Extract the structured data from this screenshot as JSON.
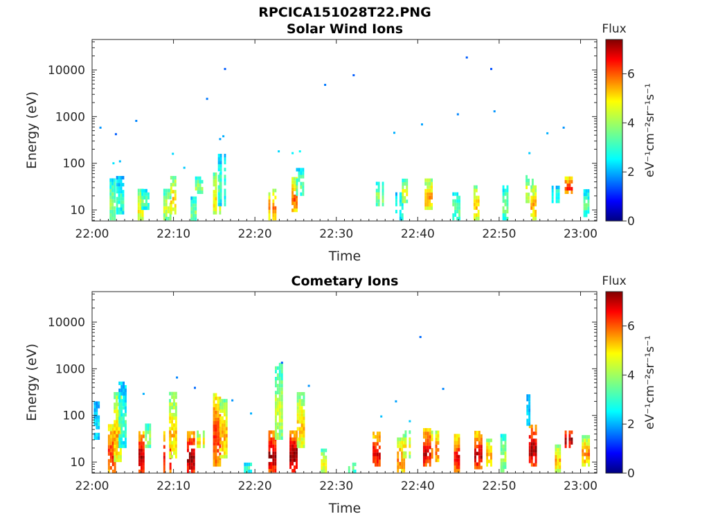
{
  "figure": {
    "title": "RPCICA151028T22.PNG"
  },
  "chart_data": [
    {
      "type": "heatmap",
      "title": "Solar Wind Ions",
      "xlabel": "Time",
      "ylabel": "Energy (eV)",
      "x_range_minutes": [
        0,
        62
      ],
      "x_ticks": [
        {
          "minute": 0,
          "label": "22:00"
        },
        {
          "minute": 10,
          "label": "22:10"
        },
        {
          "minute": 20,
          "label": "22:20"
        },
        {
          "minute": 30,
          "label": "22:30"
        },
        {
          "minute": 40,
          "label": "22:40"
        },
        {
          "minute": 50,
          "label": "22:50"
        },
        {
          "minute": 60,
          "label": "23:00"
        }
      ],
      "y_scale": "log",
      "y_range": [
        5.8,
        45000
      ],
      "y_ticks": [
        {
          "value": 10,
          "label": "10"
        },
        {
          "value": 100,
          "label": "100"
        },
        {
          "value": 1000,
          "label": "1000"
        },
        {
          "value": 10000,
          "label": "10000"
        }
      ],
      "colorbar": {
        "label": "Flux",
        "unit": "eV⁻¹cm⁻²sr⁻¹s⁻¹",
        "range": [
          0,
          7.4
        ],
        "ticks": [
          {
            "value": 0,
            "label": "0"
          },
          {
            "value": 2,
            "label": "2"
          },
          {
            "value": 4,
            "label": "4"
          },
          {
            "value": 6,
            "label": "6"
          }
        ]
      },
      "columns": [
        {
          "t": 2.5,
          "e0": 6,
          "e1": 42,
          "f": 3.6
        },
        {
          "t": 3.3,
          "e0": 8,
          "e1": 45,
          "f": 3.0
        },
        {
          "t": 5.7,
          "e0": 6,
          "e1": 28,
          "f": 4.4
        },
        {
          "t": 6.4,
          "e0": 10,
          "e1": 27,
          "f": 3.2
        },
        {
          "t": 9.1,
          "e0": 6,
          "e1": 25,
          "f": 4.0
        },
        {
          "t": 9.7,
          "e0": 8,
          "e1": 52,
          "f": 4.6
        },
        {
          "t": 12.2,
          "e0": 5.8,
          "e1": 17,
          "f": 3.4
        },
        {
          "t": 13.0,
          "e0": 22,
          "e1": 45,
          "f": 3.8
        },
        {
          "t": 15.2,
          "e0": 8,
          "e1": 55,
          "f": 4.6
        },
        {
          "t": 15.8,
          "e0": 12,
          "e1": 140,
          "f": 3.0
        },
        {
          "t": 22.0,
          "e0": 6,
          "e1": 28,
          "f": 5.0
        },
        {
          "t": 24.6,
          "e0": 9,
          "e1": 48,
          "f": 5.4
        },
        {
          "t": 25.4,
          "e0": 20,
          "e1": 75,
          "f": 3.3
        },
        {
          "t": 35.2,
          "e0": 12,
          "e1": 36,
          "f": 3.6
        },
        {
          "t": 37.6,
          "e0": 6,
          "e1": 22,
          "f": 3.0
        },
        {
          "t": 38.4,
          "e0": 14,
          "e1": 45,
          "f": 4.0
        },
        {
          "t": 41.2,
          "e0": 10,
          "e1": 42,
          "f": 4.9
        },
        {
          "t": 44.6,
          "e0": 6,
          "e1": 22,
          "f": 3.3
        },
        {
          "t": 47.2,
          "e0": 6,
          "e1": 33,
          "f": 4.6
        },
        {
          "t": 50.5,
          "e0": 6,
          "e1": 33,
          "f": 3.4
        },
        {
          "t": 53.6,
          "e0": 14,
          "e1": 55,
          "f": 4.1
        },
        {
          "t": 54.2,
          "e0": 6,
          "e1": 32,
          "f": 4.8
        },
        {
          "t": 56.8,
          "e0": 14,
          "e1": 30,
          "f": 3.0
        },
        {
          "t": 58.4,
          "e0": 22,
          "e1": 45,
          "f": 6.0
        },
        {
          "t": 60.7,
          "e0": 7,
          "e1": 24,
          "f": 3.2
        }
      ],
      "points": [
        {
          "t": 0.9,
          "e": 580,
          "f": 2.0
        },
        {
          "t": 2.8,
          "e": 420,
          "f": 1.6
        },
        {
          "t": 5.3,
          "e": 810,
          "f": 1.9
        },
        {
          "t": 2.5,
          "e": 100,
          "f": 2.6
        },
        {
          "t": 3.3,
          "e": 110,
          "f": 2.3
        },
        {
          "t": 9.8,
          "e": 160,
          "f": 2.5
        },
        {
          "t": 14.0,
          "e": 2400,
          "f": 1.8
        },
        {
          "t": 16.2,
          "e": 10500,
          "f": 1.6
        },
        {
          "t": 15.6,
          "e": 330,
          "f": 2.1
        },
        {
          "t": 16.0,
          "e": 380,
          "f": 2.2
        },
        {
          "t": 11.2,
          "e": 80,
          "f": 2.4
        },
        {
          "t": 22.8,
          "e": 180,
          "f": 2.5
        },
        {
          "t": 24.5,
          "e": 165,
          "f": 2.7
        },
        {
          "t": 25.4,
          "e": 180,
          "f": 2.8
        },
        {
          "t": 28.5,
          "e": 4800,
          "f": 1.8
        },
        {
          "t": 32.0,
          "e": 7700,
          "f": 1.6
        },
        {
          "t": 37.0,
          "e": 450,
          "f": 2.2
        },
        {
          "t": 40.4,
          "e": 680,
          "f": 2.1
        },
        {
          "t": 44.8,
          "e": 1120,
          "f": 1.9
        },
        {
          "t": 45.9,
          "e": 18500,
          "f": 1.6
        },
        {
          "t": 48.9,
          "e": 10500,
          "f": 1.5
        },
        {
          "t": 49.3,
          "e": 1300,
          "f": 2.0
        },
        {
          "t": 53.6,
          "e": 165,
          "f": 2.4
        },
        {
          "t": 55.8,
          "e": 440,
          "f": 2.2
        },
        {
          "t": 57.8,
          "e": 580,
          "f": 2.0
        }
      ]
    },
    {
      "type": "heatmap",
      "title": "Cometary Ions",
      "xlabel": "Time",
      "ylabel": "Energy (eV)",
      "x_range_minutes": [
        0,
        62
      ],
      "x_ticks": [
        {
          "minute": 0,
          "label": "22:00"
        },
        {
          "minute": 10,
          "label": "22:10"
        },
        {
          "minute": 20,
          "label": "22:20"
        },
        {
          "minute": 30,
          "label": "22:30"
        },
        {
          "minute": 40,
          "label": "22:40"
        },
        {
          "minute": 50,
          "label": "22:50"
        },
        {
          "minute": 60,
          "label": "23:00"
        }
      ],
      "y_scale": "log",
      "y_range": [
        5.8,
        45000
      ],
      "y_ticks": [
        {
          "value": 10,
          "label": "10"
        },
        {
          "value": 100,
          "label": "100"
        },
        {
          "value": 1000,
          "label": "1000"
        },
        {
          "value": 10000,
          "label": "10000"
        }
      ],
      "colorbar": {
        "label": "Flux",
        "unit": "eV⁻¹cm⁻²sr⁻¹s⁻¹",
        "range": [
          0,
          7.4
        ],
        "ticks": [
          {
            "value": 0,
            "label": "0"
          },
          {
            "value": 2,
            "label": "2"
          },
          {
            "value": 4,
            "label": "4"
          },
          {
            "value": 6,
            "label": "6"
          }
        ]
      },
      "columns": [
        {
          "t": 0.3,
          "e0": 30,
          "e1": 200,
          "f": 2.5
        },
        {
          "t": 2.3,
          "e0": 5.8,
          "e1": 60,
          "f": 5.8
        },
        {
          "t": 3.0,
          "e0": 10,
          "e1": 300,
          "f": 4.8
        },
        {
          "t": 3.6,
          "e0": 20,
          "e1": 450,
          "f": 3.0
        },
        {
          "t": 5.8,
          "e0": 5.8,
          "e1": 40,
          "f": 6.6
        },
        {
          "t": 6.6,
          "e0": 20,
          "e1": 60,
          "f": 3.8
        },
        {
          "t": 9.1,
          "e0": 5.8,
          "e1": 40,
          "f": 6.2
        },
        {
          "t": 9.8,
          "e0": 12,
          "e1": 300,
          "f": 4.6
        },
        {
          "t": 12.0,
          "e0": 5.8,
          "e1": 40,
          "f": 6.8
        },
        {
          "t": 13.2,
          "e0": 20,
          "e1": 40,
          "f": 4.5
        },
        {
          "t": 15.2,
          "e0": 8,
          "e1": 300,
          "f": 5.8
        },
        {
          "t": 16.0,
          "e0": 12,
          "e1": 200,
          "f": 4.8
        },
        {
          "t": 19.0,
          "e0": 5.8,
          "e1": 9,
          "f": 3.2
        },
        {
          "t": 22.0,
          "e0": 6,
          "e1": 45,
          "f": 6.6
        },
        {
          "t": 22.8,
          "e0": 30,
          "e1": 1200,
          "f": 4.0
        },
        {
          "t": 24.6,
          "e0": 6,
          "e1": 45,
          "f": 6.8
        },
        {
          "t": 25.5,
          "e0": 20,
          "e1": 300,
          "f": 4.6
        },
        {
          "t": 28.2,
          "e0": 5.8,
          "e1": 17,
          "f": 4.4
        },
        {
          "t": 31.8,
          "e0": 5.8,
          "e1": 9,
          "f": 3.4
        },
        {
          "t": 34.8,
          "e0": 8,
          "e1": 40,
          "f": 6.2
        },
        {
          "t": 37.8,
          "e0": 6,
          "e1": 30,
          "f": 5.2
        },
        {
          "t": 38.5,
          "e0": 12,
          "e1": 45,
          "f": 4.2
        },
        {
          "t": 41.0,
          "e0": 8,
          "e1": 45,
          "f": 6.4
        },
        {
          "t": 42.0,
          "e0": 10,
          "e1": 40,
          "f": 5.4
        },
        {
          "t": 44.8,
          "e0": 6,
          "e1": 35,
          "f": 6.0
        },
        {
          "t": 47.3,
          "e0": 7,
          "e1": 40,
          "f": 6.4
        },
        {
          "t": 48.5,
          "e0": 8,
          "e1": 30,
          "f": 5.0
        },
        {
          "t": 50.5,
          "e0": 6,
          "e1": 35,
          "f": 3.8
        },
        {
          "t": 54.0,
          "e0": 8,
          "e1": 60,
          "f": 6.6
        },
        {
          "t": 53.7,
          "e0": 60,
          "e1": 280,
          "f": 2.3
        },
        {
          "t": 57.2,
          "e0": 6,
          "e1": 22,
          "f": 4.8
        },
        {
          "t": 58.4,
          "e0": 20,
          "e1": 45,
          "f": 6.6
        },
        {
          "t": 60.5,
          "e0": 8,
          "e1": 35,
          "f": 5.0
        }
      ],
      "points": [
        {
          "t": 0.2,
          "e": 190,
          "f": 2.3
        },
        {
          "t": 6.2,
          "e": 290,
          "f": 2.2
        },
        {
          "t": 10.3,
          "e": 650,
          "f": 1.9
        },
        {
          "t": 12.5,
          "e": 390,
          "f": 1.7
        },
        {
          "t": 17.1,
          "e": 210,
          "f": 2.0
        },
        {
          "t": 19.4,
          "e": 110,
          "f": 2.2
        },
        {
          "t": 23.2,
          "e": 1350,
          "f": 1.6
        },
        {
          "t": 26.5,
          "e": 430,
          "f": 2.0
        },
        {
          "t": 35.4,
          "e": 95,
          "f": 2.3
        },
        {
          "t": 37.2,
          "e": 200,
          "f": 2.1
        },
        {
          "t": 40.2,
          "e": 4800,
          "f": 1.7
        },
        {
          "t": 43.0,
          "e": 370,
          "f": 1.9
        },
        {
          "t": 38.9,
          "e": 75,
          "f": 2.4
        }
      ]
    }
  ]
}
